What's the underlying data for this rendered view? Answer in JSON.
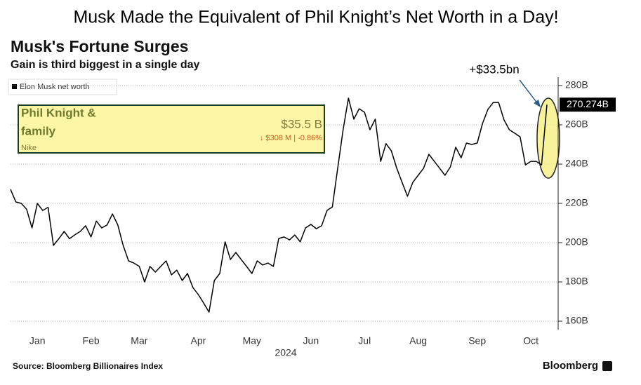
{
  "headline": "Musk Made the Equivalent of Phil Knight’s Net Worth in a Day!",
  "chart_data": {
    "type": "line",
    "title": "Musk's Fortune Surges",
    "subtitle": "Gain is third biggest in a single day",
    "x_label": "2024",
    "categories": [
      null,
      null,
      null,
      null,
      null,
      "Jan",
      null,
      null,
      null,
      null,
      null,
      null,
      null,
      null,
      null,
      "Feb",
      null,
      null,
      null,
      null,
      null,
      null,
      null,
      null,
      "Mar",
      null,
      null,
      null,
      null,
      null,
      null,
      null,
      null,
      null,
      null,
      "Apr",
      null,
      null,
      null,
      null,
      null,
      null,
      null,
      null,
      null,
      "May",
      null,
      null,
      null,
      null,
      null,
      null,
      null,
      null,
      null,
      null,
      "Jun",
      null,
      null,
      null,
      null,
      null,
      null,
      null,
      null,
      null,
      "Jul",
      null,
      null,
      null,
      null,
      null,
      null,
      null,
      null,
      null,
      "Aug",
      null,
      null,
      null,
      null,
      null,
      null,
      null,
      null,
      null,
      null,
      "Sep",
      null,
      null,
      null,
      null,
      null,
      null,
      null,
      null,
      null,
      "Oct",
      null,
      null,
      null
    ],
    "series": [
      {
        "name": "Elon Musk net worth",
        "color": "#000000",
        "values": [
          227.1,
          220.7,
          220,
          217,
          207.5,
          220,
          216.4,
          218,
          198.6,
          202,
          205.7,
          202,
          204,
          205.7,
          208.6,
          202.9,
          211,
          207.5,
          209,
          214.6,
          209,
          198.6,
          190.7,
          189.6,
          187.9,
          180,
          187.9,
          185,
          187.9,
          190.7,
          183.6,
          186,
          180.7,
          184.3,
          177.1,
          173.6,
          169.3,
          164.6,
          180.7,
          184.3,
          200.4,
          191.4,
          195,
          191.4,
          187.9,
          184.3,
          190.7,
          188.6,
          189.6,
          187.9,
          202.1,
          202.9,
          201.4,
          203.9,
          200.4,
          207.5,
          209.3,
          207.1,
          208.6,
          216.4,
          218.2,
          237.9,
          257.5,
          273.6,
          262.9,
          268.2,
          266.4,
          257.5,
          262.9,
          241.4,
          250.4,
          246.8,
          237.9,
          230.7,
          223.6,
          230.7,
          234.3,
          237.9,
          245,
          241.4,
          237.9,
          234.3,
          238.6,
          248.6,
          243.2,
          250.7,
          250,
          250.7,
          260.7,
          267.9,
          271.4,
          271.4,
          262.5,
          257.5,
          255.7,
          253.9,
          239.6,
          241.4,
          241.4,
          239.6,
          270.274
        ]
      }
    ],
    "end_label": "270.274B",
    "ylim": [
      156,
      284
    ],
    "yticks": [
      {
        "value": 160,
        "label": "160B"
      },
      {
        "value": 180,
        "label": "180B"
      },
      {
        "value": 200,
        "label": "200B"
      },
      {
        "value": 220,
        "label": "220B"
      },
      {
        "value": 240,
        "label": "240B"
      },
      {
        "value": 260,
        "label": "260B"
      },
      {
        "value": 280,
        "label": "280B"
      }
    ],
    "grid": true,
    "annotation": "+$33.5bn",
    "source": "Source: Bloomberg Billionaires Index",
    "brand": "Bloomberg"
  },
  "card": {
    "name_lines": [
      "Phil Knight &",
      "family"
    ],
    "company": "Nike",
    "net_worth": "$35.5 B",
    "change": "↓ $308 M | -0.86%"
  }
}
